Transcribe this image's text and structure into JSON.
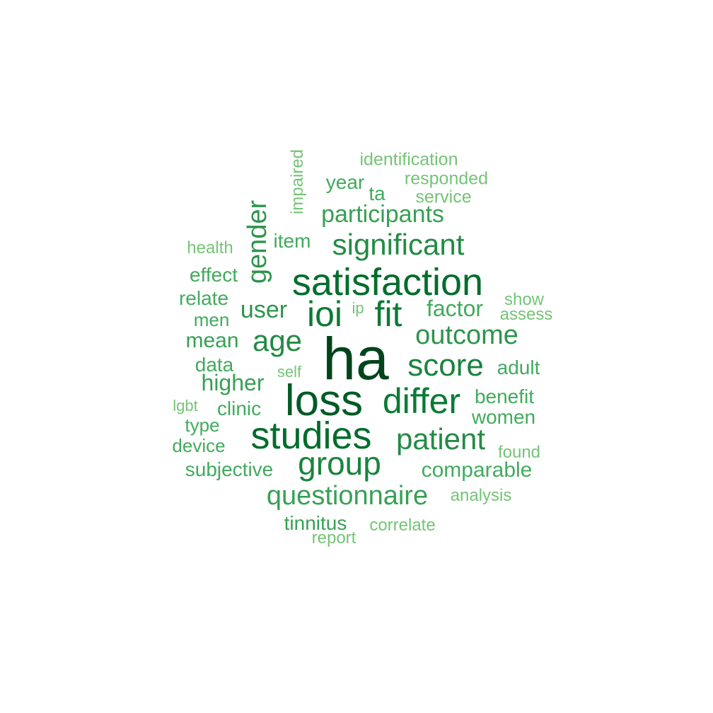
{
  "words": [
    {
      "id": "ha",
      "text": "ha",
      "color": "#00441b"
    },
    {
      "id": "loss",
      "text": "loss",
      "color": "#005a24"
    },
    {
      "id": "satisfaction",
      "text": "satisfaction",
      "color": "#006d2c"
    },
    {
      "id": "studies",
      "text": "studies",
      "color": "#006d2c"
    },
    {
      "id": "differ",
      "text": "differ",
      "color": "#0c7a35"
    },
    {
      "id": "ioi",
      "text": "ioi",
      "color": "#0c7a35"
    },
    {
      "id": "fit",
      "text": "fit",
      "color": "#0c7a35"
    },
    {
      "id": "group",
      "text": "group",
      "color": "#19843d"
    },
    {
      "id": "score",
      "text": "score",
      "color": "#19843d"
    },
    {
      "id": "patient",
      "text": "patient",
      "color": "#238b45"
    },
    {
      "id": "significant",
      "text": "significant",
      "color": "#238b45"
    },
    {
      "id": "age",
      "text": "age",
      "color": "#238b45"
    },
    {
      "id": "outcome",
      "text": "outcome",
      "color": "#2d944d"
    },
    {
      "id": "questionnaire",
      "text": "questionnaire",
      "color": "#37a055"
    },
    {
      "id": "gender",
      "text": "gender",
      "color": "#2d944d"
    },
    {
      "id": "participants",
      "text": "participants",
      "color": "#37a055"
    },
    {
      "id": "user",
      "text": "user",
      "color": "#2d944d"
    },
    {
      "id": "factor",
      "text": "factor",
      "color": "#41ab5d"
    },
    {
      "id": "higher",
      "text": "higher",
      "color": "#37a055"
    },
    {
      "id": "comparable",
      "text": "comparable",
      "color": "#41ab5d"
    },
    {
      "id": "mean",
      "text": "mean",
      "color": "#37a055"
    },
    {
      "id": "benefit",
      "text": "benefit",
      "color": "#41ab5d"
    },
    {
      "id": "women",
      "text": "women",
      "color": "#41ab5d"
    },
    {
      "id": "adult",
      "text": "adult",
      "color": "#41ab5d"
    },
    {
      "id": "tinnitus",
      "text": "tinnitus",
      "color": "#37a055"
    },
    {
      "id": "subjective",
      "text": "subjective",
      "color": "#41ab5d"
    },
    {
      "id": "clinic",
      "text": "clinic",
      "color": "#41ab5d"
    },
    {
      "id": "item",
      "text": "item",
      "color": "#41ab5d"
    },
    {
      "id": "data",
      "text": "data",
      "color": "#41ab5d"
    },
    {
      "id": "effect",
      "text": "effect",
      "color": "#41ab5d"
    },
    {
      "id": "relate",
      "text": "relate",
      "color": "#41ab5d"
    },
    {
      "id": "year",
      "text": "year",
      "color": "#41ab5d"
    },
    {
      "id": "ta",
      "text": "ta",
      "color": "#41ab5d"
    },
    {
      "id": "type",
      "text": "type",
      "color": "#41ab5d"
    },
    {
      "id": "device",
      "text": "device",
      "color": "#41ab5d"
    },
    {
      "id": "men",
      "text": "men",
      "color": "#41ab5d"
    },
    {
      "id": "identification",
      "text": "identification",
      "color": "#74c476"
    },
    {
      "id": "responded",
      "text": "responded",
      "color": "#74c476"
    },
    {
      "id": "service",
      "text": "service",
      "color": "#74c476"
    },
    {
      "id": "impaired",
      "text": "impaired",
      "color": "#74c476"
    },
    {
      "id": "health",
      "text": "health",
      "color": "#74c476"
    },
    {
      "id": "show",
      "text": "show",
      "color": "#74c476"
    },
    {
      "id": "assess",
      "text": "assess",
      "color": "#74c476"
    },
    {
      "id": "ip",
      "text": "ip",
      "color": "#74c476"
    },
    {
      "id": "self",
      "text": "self",
      "color": "#74c476"
    },
    {
      "id": "lgbt",
      "text": "lgbt",
      "color": "#74c476"
    },
    {
      "id": "found",
      "text": "found",
      "color": "#74c476"
    },
    {
      "id": "analysis",
      "text": "analysis",
      "color": "#74c476"
    },
    {
      "id": "correlate",
      "text": "correlate",
      "color": "#74c476"
    },
    {
      "id": "report",
      "text": "report",
      "color": "#74c476"
    }
  ]
}
